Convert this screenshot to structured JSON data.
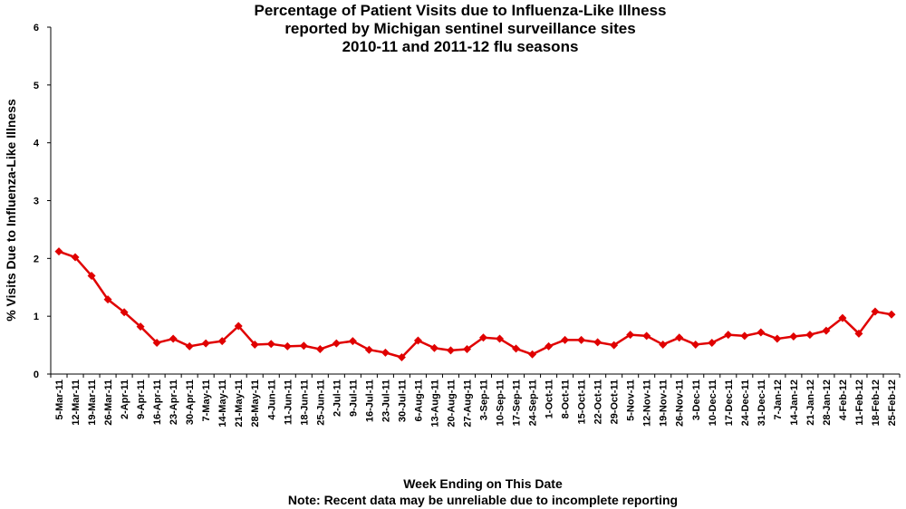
{
  "chart_data": {
    "type": "line",
    "title": [
      "Percentage of Patient Visits due to Influenza-Like Illness",
      "reported by Michigan sentinel surveillance sites",
      "2010-11 and 2011-12 flu seasons"
    ],
    "xlabel": "Week Ending on This Date",
    "note": "Note: Recent data may be unreliable due to incomplete reporting",
    "ylabel": "% Visits Due to Influenza-Like Illness",
    "ylim": [
      0,
      6
    ],
    "yticks": [
      "0",
      "1",
      "2",
      "3",
      "4",
      "5",
      "6"
    ],
    "grid": false,
    "colors": {
      "series": "#e00000",
      "axis": "#000000"
    },
    "categories": [
      "5-Mar-11",
      "12-Mar-11",
      "19-Mar-11",
      "26-Mar-11",
      "2-Apr-11",
      "9-Apr-11",
      "16-Apr-11",
      "23-Apr-11",
      "30-Apr-11",
      "7-May-11",
      "14-May-11",
      "21-May-11",
      "28-May-11",
      "4-Jun-11",
      "11-Jun-11",
      "18-Jun-11",
      "25-Jun-11",
      "2-Jul-11",
      "9-Jul-11",
      "16-Jul-11",
      "23-Jul-11",
      "30-Jul-11",
      "6-Aug-11",
      "13-Aug-11",
      "20-Aug-11",
      "27-Aug-11",
      "3-Sep-11",
      "10-Sep-11",
      "17-Sep-11",
      "24-Sep-11",
      "1-Oct-11",
      "8-Oct-11",
      "15-Oct-11",
      "22-Oct-11",
      "29-Oct-11",
      "5-Nov-11",
      "12-Nov-11",
      "19-Nov-11",
      "26-Nov-11",
      "3-Dec-11",
      "10-Dec-11",
      "17-Dec-11",
      "24-Dec-11",
      "31-Dec-11",
      "7-Jan-12",
      "14-Jan-12",
      "21-Jan-12",
      "28-Jan-12",
      "4-Feb-12",
      "11-Feb-12",
      "18-Feb-12",
      "25-Feb-12"
    ],
    "series": [
      {
        "values": [
          2.12,
          2.02,
          1.7,
          1.29,
          1.07,
          0.82,
          0.54,
          0.61,
          0.48,
          0.53,
          0.57,
          0.83,
          0.51,
          0.52,
          0.48,
          0.49,
          0.43,
          0.53,
          0.57,
          0.42,
          0.37,
          0.29,
          0.58,
          0.45,
          0.41,
          0.43,
          0.63,
          0.61,
          0.44,
          0.34,
          0.48,
          0.59,
          0.59,
          0.55,
          0.5,
          0.68,
          0.66,
          0.51,
          0.63,
          0.51,
          0.54,
          0.68,
          0.66,
          0.72,
          0.61,
          0.65,
          0.68,
          0.75,
          0.97,
          0.7,
          1.08,
          1.03
        ]
      }
    ]
  }
}
